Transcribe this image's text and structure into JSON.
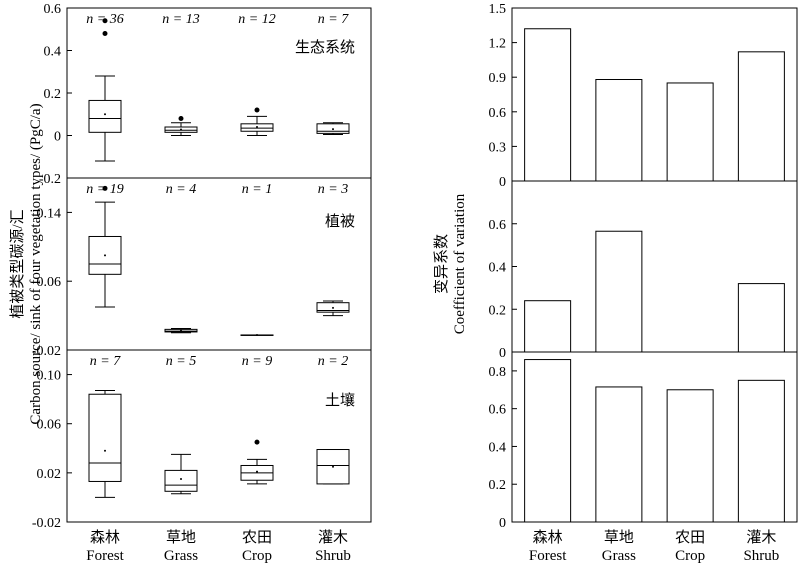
{
  "chart_data": [
    {
      "type": "box",
      "ylabel_cn": "植被类型碳源/汇",
      "ylabel_en": "Carbon source/ sink of four vegetation types/ (PgC/a)",
      "categories_cn": [
        "森林",
        "草地",
        "农田",
        "灌木"
      ],
      "categories_en": [
        "Forest",
        "Grass",
        "Crop",
        "Shrub"
      ],
      "panels": [
        {
          "title": "生态系统",
          "ylim": [
            -0.2,
            0.6
          ],
          "yticks": [
            "-0.2",
            "0",
            "0.2",
            "0.4",
            "0.6"
          ],
          "counts": [
            "n = 36",
            "n = 13",
            "n = 12",
            "n = 7"
          ],
          "boxes": [
            {
              "wlo": -0.12,
              "q1": 0.015,
              "med": 0.08,
              "q3": 0.165,
              "whi": 0.28,
              "mean": 0.1,
              "outliers": [
                0.48,
                0.54
              ]
            },
            {
              "wlo": 0.0,
              "q1": 0.015,
              "med": 0.025,
              "q3": 0.04,
              "whi": 0.06,
              "mean": 0.028,
              "outliers": [
                0.08
              ]
            },
            {
              "wlo": 0.0,
              "q1": 0.02,
              "med": 0.035,
              "q3": 0.055,
              "whi": 0.09,
              "mean": 0.04,
              "outliers": [
                0.12
              ]
            },
            {
              "wlo": 0.005,
              "q1": 0.01,
              "med": 0.02,
              "q3": 0.055,
              "whi": 0.06,
              "mean": 0.03,
              "outliers": []
            }
          ]
        },
        {
          "title": "植被",
          "ylim": [
            -0.02,
            0.18
          ],
          "yticks": [
            "-0.02",
            "0.06",
            "0.14"
          ],
          "counts": [
            "n = 19",
            "n = 4",
            "n = 1",
            "n = 3"
          ],
          "boxes": [
            {
              "wlo": 0.03,
              "q1": 0.068,
              "med": 0.08,
              "q3": 0.112,
              "whi": 0.152,
              "mean": 0.09,
              "outliers": [
                0.168
              ]
            },
            {
              "wlo": 0.0,
              "q1": 0.001,
              "med": 0.002,
              "q3": 0.004,
              "whi": 0.005,
              "mean": 0.0025,
              "outliers": []
            },
            {
              "wlo": -0.0025,
              "q1": -0.0025,
              "med": -0.0025,
              "q3": -0.0025,
              "whi": -0.0025,
              "mean": -0.0025,
              "outliers": []
            },
            {
              "wlo": 0.02,
              "q1": 0.024,
              "med": 0.026,
              "q3": 0.035,
              "whi": 0.037,
              "mean": 0.029,
              "outliers": []
            }
          ]
        },
        {
          "title": "土壤",
          "ylim": [
            -0.02,
            0.12
          ],
          "yticks": [
            "-0.02",
            "0.02",
            "0.06",
            "0.10"
          ],
          "counts": [
            "n = 7",
            "n = 5",
            "n = 9",
            "n = 2"
          ],
          "boxes": [
            {
              "wlo": 0.0,
              "q1": 0.013,
              "med": 0.028,
              "q3": 0.084,
              "whi": 0.087,
              "mean": 0.038,
              "outliers": []
            },
            {
              "wlo": 0.003,
              "q1": 0.005,
              "med": 0.01,
              "q3": 0.022,
              "whi": 0.035,
              "mean": 0.015,
              "outliers": []
            },
            {
              "wlo": 0.011,
              "q1": 0.014,
              "med": 0.02,
              "q3": 0.026,
              "whi": 0.031,
              "mean": 0.021,
              "outliers": [
                0.045
              ]
            },
            {
              "wlo": 0.011,
              "q1": 0.011,
              "med": 0.026,
              "q3": 0.039,
              "whi": 0.039,
              "mean": 0.025,
              "outliers": []
            }
          ]
        }
      ]
    },
    {
      "type": "bar",
      "ylabel_cn": "变异系数",
      "ylabel_en": "Coefficient of variation",
      "categories_cn": [
        "森林",
        "草地",
        "农田",
        "灌木"
      ],
      "categories_en": [
        "Forest",
        "Grass",
        "Crop",
        "Shrub"
      ],
      "panels": [
        {
          "ylim": [
            0,
            1.5
          ],
          "yticks": [
            "0",
            "0.3",
            "0.6",
            "0.9",
            "1.2",
            "1.5"
          ],
          "values": [
            1.32,
            0.88,
            0.85,
            1.12
          ]
        },
        {
          "ylim": [
            0,
            0.8
          ],
          "yticks": [
            "0",
            "0.2",
            "0.4",
            "0.6"
          ],
          "values": [
            0.24,
            0.565,
            0,
            0.32
          ]
        },
        {
          "ylim": [
            0,
            0.9
          ],
          "yticks": [
            "0",
            "0.2",
            "0.4",
            "0.6",
            "0.8"
          ],
          "values": [
            0.86,
            0.715,
            0.7,
            0.75
          ]
        }
      ]
    }
  ]
}
